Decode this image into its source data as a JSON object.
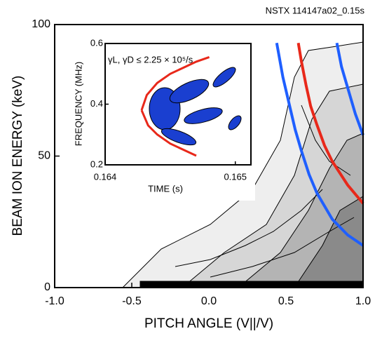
{
  "chart_data": [
    {
      "type": "line",
      "title": "NSTX 114147a02_0.15s",
      "x_label": "PITCH ANGLE (V||/V)",
      "y_label": "BEAM ION ENERGY (keV)",
      "xlim": [
        -1.0,
        1.0
      ],
      "ylim": [
        0,
        100
      ],
      "xticks": [
        {
          "value": -1.0,
          "label": "-1.0"
        },
        {
          "value": -0.5,
          "label": "-0.5"
        },
        {
          "value": 0.0,
          "label": "0.0"
        },
        {
          "value": 0.5,
          "label": "0.5"
        },
        {
          "value": 1.0,
          "label": "1.0"
        }
      ],
      "yticks": [
        0,
        50,
        100
      ],
      "grid": false,
      "series": [
        {
          "color": "#1f5fff",
          "x": [
            0.44,
            0.48,
            0.52,
            0.56,
            0.6,
            0.65,
            0.7,
            0.8,
            0.9,
            1.0
          ],
          "values": [
            93,
            80,
            70,
            60,
            52,
            43,
            36,
            26,
            20,
            16
          ]
        },
        {
          "color": "#e8281a",
          "x": [
            0.58,
            0.6,
            0.63,
            0.66,
            0.7,
            0.75,
            0.8,
            0.9,
            1.0
          ],
          "values": [
            93,
            86,
            77,
            69,
            62,
            54,
            48,
            39,
            32
          ]
        },
        {
          "color": "#1f5fff",
          "x": [
            0.83,
            0.86,
            0.9,
            0.95,
            1.0
          ],
          "values": [
            93,
            84,
            76,
            66,
            58
          ]
        }
      ]
    },
    {
      "type": "line",
      "title": "γL, γD ≤ 2.25 × 10⁵/s",
      "x_label": "TIME (s)",
      "y_label": "FREQUENCY (MHz)",
      "xlim": [
        0.164,
        0.16512
      ],
      "ylim": [
        0.2,
        0.6
      ],
      "xticks": [
        0.164,
        0.165
      ],
      "yticks": [
        0.2,
        0.4,
        0.6
      ],
      "grid": false,
      "series": [
        {
          "color": "#e8281a",
          "x": [
            0.16428,
            0.16432,
            0.1644,
            0.1645,
            0.1646,
            0.1647,
            0.1648
          ],
          "values": [
            0.38,
            0.43,
            0.47,
            0.5,
            0.52,
            0.54,
            0.555
          ]
        },
        {
          "color": "#e8281a",
          "x": [
            0.16428,
            0.16433,
            0.1644,
            0.1645,
            0.1646,
            0.1647
          ],
          "values": [
            0.38,
            0.33,
            0.3,
            0.27,
            0.25,
            0.23
          ]
        }
      ]
    }
  ]
}
